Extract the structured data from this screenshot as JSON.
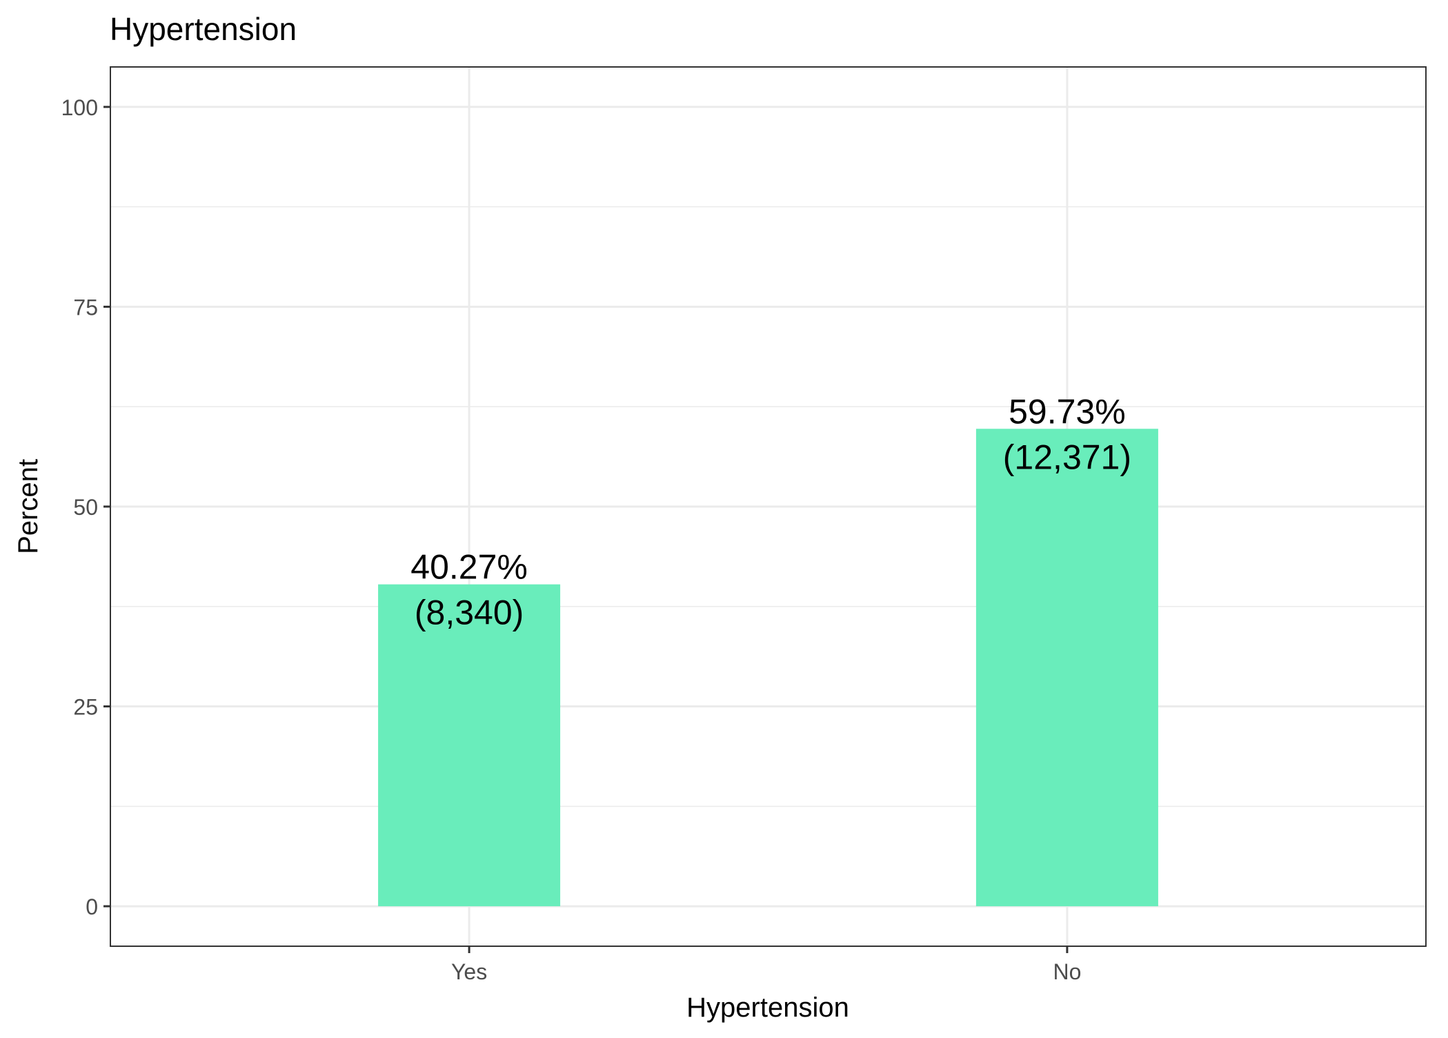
{
  "chart_data": {
    "type": "bar",
    "title": "Hypertension",
    "xlabel": "Hypertension",
    "ylabel": "Percent",
    "categories": [
      "Yes",
      "No"
    ],
    "values": [
      40.27,
      59.73
    ],
    "value_labels": [
      "40.27%",
      "59.73%"
    ],
    "count_labels": [
      "(8,340)",
      "(12,371)"
    ],
    "ylim": [
      -5,
      105
    ],
    "yticks": [
      0,
      25,
      50,
      75,
      100
    ],
    "ytick_labels": [
      "0",
      "25",
      "50",
      "75",
      "100"
    ],
    "minor_yticks": [
      12.5,
      37.5,
      62.5,
      87.5
    ],
    "grid": true,
    "legend": "none",
    "bar_color": "#69EDBB",
    "grid_color": "#EBEBEB",
    "panel_border_color": "#333333"
  }
}
